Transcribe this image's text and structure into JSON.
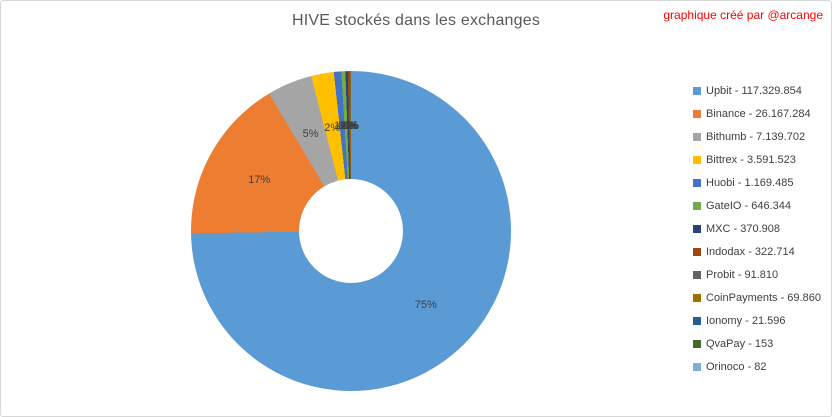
{
  "credit": "graphique créé par @arcange",
  "credit_color": "#ff0000",
  "chart_data": {
    "type": "pie",
    "subtype": "donut",
    "title": "HIVE stockés dans les exchanges",
    "legend_position": "right",
    "start_angle_deg": 0,
    "direction": "clockwise",
    "data_labels": "percent",
    "categories": [
      "Upbit",
      "Binance",
      "Bithumb",
      "Bittrex",
      "Huobi",
      "GateIO",
      "MXC",
      "Indodax",
      "Probit",
      "CoinPayments",
      "Ionomy",
      "QvaPay",
      "Orinoco"
    ],
    "values": [
      117329854,
      26167284,
      7139702,
      3591523,
      1169485,
      646344,
      370908,
      322714,
      91810,
      69860,
      21596,
      153,
      82
    ],
    "display_values": [
      "117.329.854",
      "26.167.284",
      "7.139.702",
      "3.591.523",
      "1.169.485",
      "646.344",
      "370.908",
      "322.714",
      "91.810",
      "69.860",
      "21.596",
      "153",
      "82"
    ],
    "percent_labels": [
      "75%",
      "17%",
      "5%",
      "2%",
      "1%",
      "0%",
      "0%",
      "0%",
      "0%",
      "0%",
      "0%",
      "0%",
      "0%"
    ],
    "colors": [
      "#5B9BD5",
      "#ED7D31",
      "#A5A5A5",
      "#FFC000",
      "#4472C4",
      "#70AD47",
      "#264478",
      "#9E480E",
      "#636363",
      "#997300",
      "#255E91",
      "#43682B",
      "#7CAFDD"
    ],
    "legend_separator": " - ",
    "title_color": "#595959",
    "label_color": "#404040"
  }
}
